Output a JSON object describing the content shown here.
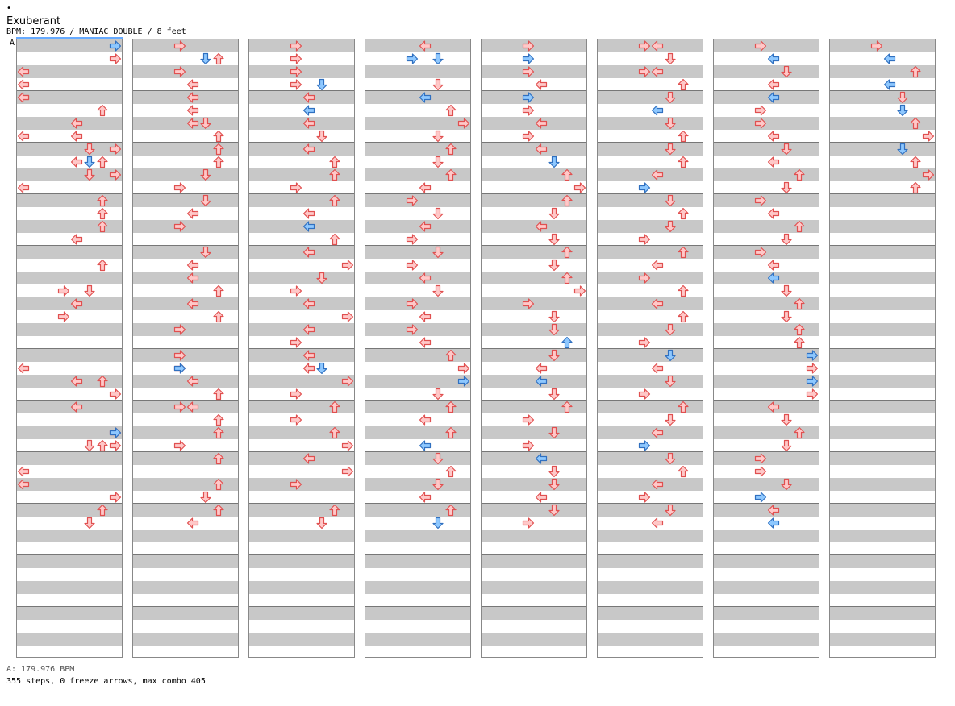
{
  "header": {
    "dot": "•",
    "title": "Exuberant",
    "meta": "BPM: 179.976 / MANIAC DOUBLE / 8 feet",
    "bpm_marker": "A"
  },
  "footer": {
    "bpm_line": "A: 179.976 BPM",
    "stats": "355 steps, 0 freeze arrows, max combo 405"
  },
  "colors": {
    "band": "#c8c8c8",
    "border": "#888888",
    "red_fill": "#ffc8c8",
    "red_stroke": "#e05050",
    "blue_fill": "#8ec8ff",
    "blue_stroke": "#3070c0",
    "bpm_marker": "#66aaff"
  },
  "notes": [
    [
      [
        0,
        7,
        1
      ],
      [
        0,
        9,
        2
      ],
      [
        0,
        12,
        3
      ],
      [
        0,
        9,
        4
      ],
      [
        0,
        8,
        4
      ],
      [
        0,
        6,
        5
      ],
      [
        0,
        4,
        6
      ],
      [
        1,
        7,
        0
      ],
      [
        0,
        4,
        7
      ],
      [
        0,
        9,
        7
      ],
      [
        0,
        5,
        8
      ],
      [
        0,
        7,
        8
      ],
      [
        0,
        4,
        9
      ],
      [
        0,
        6,
        9
      ],
      [
        1,
        5,
        9
      ],
      [
        0,
        7,
        10
      ],
      [
        0,
        5,
        10
      ],
      [
        0,
        9,
        11
      ],
      [
        0,
        6,
        12
      ],
      [
        0,
        6,
        13
      ],
      [
        0,
        6,
        14
      ],
      [
        0,
        4,
        15
      ],
      [
        0,
        6,
        17
      ],
      [
        0,
        5,
        19
      ],
      [
        0,
        3,
        19
      ],
      [
        0,
        4,
        20
      ],
      [
        0,
        3,
        21
      ],
      [
        0,
        8,
        25
      ],
      [
        0,
        6,
        26
      ],
      [
        0,
        4,
        26
      ],
      [
        0,
        7,
        27
      ],
      [
        0,
        4,
        28
      ],
      [
        0,
        7,
        30
      ],
      [
        1,
        7,
        30
      ],
      [
        0,
        7,
        31
      ],
      [
        0,
        5,
        31
      ],
      [
        0,
        6,
        31
      ],
      [
        0,
        8,
        33
      ],
      [
        0,
        9,
        34
      ],
      [
        0,
        7,
        35
      ],
      [
        0,
        6,
        36
      ],
      [
        0,
        5,
        37
      ]
    ],
    [
      [
        0,
        3,
        0
      ],
      [
        0,
        6,
        1
      ],
      [
        1,
        5,
        1
      ],
      [
        0,
        3,
        2
      ],
      [
        0,
        4,
        3
      ],
      [
        0,
        4,
        4
      ],
      [
        0,
        4,
        5
      ],
      [
        0,
        5,
        6
      ],
      [
        0,
        4,
        6
      ],
      [
        0,
        6,
        7
      ],
      [
        0,
        6,
        8
      ],
      [
        0,
        6,
        9
      ],
      [
        0,
        5,
        10
      ],
      [
        0,
        3,
        11
      ],
      [
        0,
        5,
        12
      ],
      [
        0,
        4,
        13
      ],
      [
        0,
        3,
        14
      ],
      [
        0,
        5,
        16
      ],
      [
        0,
        4,
        17
      ],
      [
        0,
        4,
        18
      ],
      [
        0,
        6,
        19
      ],
      [
        0,
        4,
        20
      ],
      [
        0,
        6,
        21
      ],
      [
        0,
        3,
        22
      ],
      [
        0,
        3,
        24
      ],
      [
        0,
        3,
        25
      ],
      [
        1,
        3,
        25
      ],
      [
        0,
        4,
        26
      ],
      [
        0,
        6,
        27
      ],
      [
        0,
        3,
        28
      ],
      [
        0,
        4,
        28
      ],
      [
        0,
        6,
        29
      ],
      [
        0,
        6,
        30
      ],
      [
        0,
        3,
        31
      ],
      [
        0,
        6,
        32
      ],
      [
        0,
        6,
        34
      ],
      [
        0,
        5,
        35
      ],
      [
        0,
        6,
        36
      ],
      [
        0,
        4,
        37
      ]
    ],
    [
      [
        0,
        3,
        0
      ],
      [
        0,
        3,
        1
      ],
      [
        0,
        3,
        2
      ],
      [
        0,
        3,
        3
      ],
      [
        1,
        5,
        3
      ],
      [
        0,
        4,
        4
      ],
      [
        1,
        4,
        5
      ],
      [
        0,
        4,
        6
      ],
      [
        0,
        5,
        7
      ],
      [
        0,
        4,
        8
      ],
      [
        0,
        6,
        9
      ],
      [
        0,
        6,
        10
      ],
      [
        0,
        3,
        11
      ],
      [
        0,
        6,
        12
      ],
      [
        0,
        4,
        13
      ],
      [
        1,
        4,
        14
      ],
      [
        0,
        6,
        15
      ],
      [
        0,
        4,
        16
      ],
      [
        0,
        7,
        17
      ],
      [
        0,
        5,
        18
      ],
      [
        0,
        3,
        19
      ],
      [
        0,
        4,
        20
      ],
      [
        0,
        7,
        21
      ],
      [
        0,
        4,
        22
      ],
      [
        0,
        3,
        23
      ],
      [
        0,
        4,
        24
      ],
      [
        0,
        4,
        25
      ],
      [
        1,
        5,
        25
      ],
      [
        0,
        7,
        26
      ],
      [
        0,
        3,
        27
      ],
      [
        0,
        6,
        28
      ],
      [
        0,
        3,
        29
      ],
      [
        0,
        6,
        30
      ],
      [
        0,
        7,
        31
      ],
      [
        0,
        4,
        32
      ],
      [
        0,
        7,
        33
      ],
      [
        0,
        3,
        34
      ],
      [
        0,
        6,
        36
      ],
      [
        0,
        5,
        37
      ]
    ],
    [
      [
        0,
        4,
        0
      ],
      [
        1,
        3,
        1
      ],
      [
        1,
        5,
        1
      ],
      [
        0,
        5,
        3
      ],
      [
        1,
        4,
        4
      ],
      [
        0,
        6,
        5
      ],
      [
        0,
        7,
        6
      ],
      [
        0,
        5,
        7
      ],
      [
        0,
        6,
        8
      ],
      [
        0,
        5,
        9
      ],
      [
        0,
        6,
        10
      ],
      [
        0,
        4,
        11
      ],
      [
        0,
        3,
        12
      ],
      [
        0,
        5,
        13
      ],
      [
        0,
        4,
        14
      ],
      [
        0,
        3,
        15
      ],
      [
        0,
        5,
        16
      ],
      [
        0,
        3,
        17
      ],
      [
        0,
        4,
        18
      ],
      [
        0,
        5,
        19
      ],
      [
        0,
        3,
        20
      ],
      [
        0,
        4,
        21
      ],
      [
        0,
        3,
        22
      ],
      [
        0,
        4,
        23
      ],
      [
        0,
        6,
        24
      ],
      [
        0,
        7,
        25
      ],
      [
        1,
        7,
        26
      ],
      [
        0,
        5,
        27
      ],
      [
        0,
        6,
        28
      ],
      [
        0,
        4,
        29
      ],
      [
        0,
        6,
        30
      ],
      [
        1,
        4,
        31
      ],
      [
        0,
        5,
        32
      ],
      [
        0,
        6,
        33
      ],
      [
        0,
        5,
        34
      ],
      [
        0,
        4,
        35
      ],
      [
        0,
        6,
        36
      ],
      [
        1,
        5,
        37
      ]
    ],
    [
      [
        0,
        3,
        0
      ],
      [
        1,
        3,
        1
      ],
      [
        0,
        3,
        2
      ],
      [
        0,
        4,
        3
      ],
      [
        1,
        3,
        4
      ],
      [
        0,
        3,
        5
      ],
      [
        0,
        4,
        6
      ],
      [
        0,
        3,
        7
      ],
      [
        0,
        4,
        8
      ],
      [
        1,
        5,
        9
      ],
      [
        0,
        6,
        10
      ],
      [
        0,
        7,
        11
      ],
      [
        0,
        6,
        12
      ],
      [
        0,
        5,
        13
      ],
      [
        0,
        4,
        14
      ],
      [
        0,
        5,
        15
      ],
      [
        0,
        6,
        16
      ],
      [
        0,
        5,
        17
      ],
      [
        0,
        6,
        18
      ],
      [
        0,
        7,
        19
      ],
      [
        0,
        3,
        20
      ],
      [
        0,
        5,
        21
      ],
      [
        0,
        5,
        22
      ],
      [
        1,
        6,
        23
      ],
      [
        0,
        5,
        24
      ],
      [
        0,
        4,
        25
      ],
      [
        1,
        4,
        26
      ],
      [
        0,
        5,
        27
      ],
      [
        0,
        6,
        28
      ],
      [
        0,
        3,
        29
      ],
      [
        0,
        5,
        30
      ],
      [
        0,
        3,
        31
      ],
      [
        1,
        4,
        32
      ],
      [
        0,
        5,
        33
      ],
      [
        0,
        5,
        34
      ],
      [
        0,
        4,
        35
      ],
      [
        0,
        5,
        36
      ],
      [
        0,
        3,
        37
      ]
    ],
    [
      [
        0,
        3,
        0
      ],
      [
        0,
        4,
        0
      ],
      [
        0,
        5,
        1
      ],
      [
        0,
        3,
        2
      ],
      [
        0,
        4,
        2
      ],
      [
        0,
        6,
        3
      ],
      [
        0,
        5,
        4
      ],
      [
        1,
        4,
        5
      ],
      [
        0,
        5,
        6
      ],
      [
        0,
        6,
        7
      ],
      [
        0,
        5,
        8
      ],
      [
        0,
        6,
        9
      ],
      [
        0,
        4,
        10
      ],
      [
        1,
        3,
        11
      ],
      [
        0,
        5,
        12
      ],
      [
        0,
        6,
        13
      ],
      [
        0,
        5,
        14
      ],
      [
        0,
        3,
        15
      ],
      [
        0,
        6,
        16
      ],
      [
        0,
        4,
        17
      ],
      [
        0,
        3,
        18
      ],
      [
        0,
        6,
        19
      ],
      [
        0,
        4,
        20
      ],
      [
        0,
        6,
        21
      ],
      [
        0,
        5,
        22
      ],
      [
        0,
        3,
        23
      ],
      [
        1,
        5,
        24
      ],
      [
        0,
        4,
        25
      ],
      [
        0,
        5,
        26
      ],
      [
        0,
        3,
        27
      ],
      [
        0,
        6,
        28
      ],
      [
        0,
        5,
        29
      ],
      [
        0,
        4,
        30
      ],
      [
        1,
        3,
        31
      ],
      [
        0,
        5,
        32
      ],
      [
        0,
        6,
        33
      ],
      [
        0,
        4,
        34
      ],
      [
        0,
        3,
        35
      ],
      [
        0,
        5,
        36
      ],
      [
        0,
        4,
        37
      ]
    ],
    [
      [
        0,
        3,
        0
      ],
      [
        1,
        4,
        1
      ],
      [
        0,
        5,
        2
      ],
      [
        0,
        4,
        3
      ],
      [
        1,
        4,
        4
      ],
      [
        0,
        3,
        5
      ],
      [
        0,
        3,
        6
      ],
      [
        0,
        4,
        7
      ],
      [
        0,
        5,
        8
      ],
      [
        0,
        4,
        9
      ],
      [
        0,
        6,
        10
      ],
      [
        0,
        5,
        11
      ],
      [
        0,
        3,
        12
      ],
      [
        0,
        4,
        13
      ],
      [
        0,
        6,
        14
      ],
      [
        0,
        5,
        15
      ],
      [
        0,
        3,
        16
      ],
      [
        0,
        4,
        17
      ],
      [
        1,
        4,
        18
      ],
      [
        0,
        5,
        19
      ],
      [
        0,
        6,
        20
      ],
      [
        0,
        5,
        21
      ],
      [
        0,
        6,
        22
      ],
      [
        0,
        6,
        23
      ],
      [
        1,
        7,
        24
      ],
      [
        0,
        7,
        25
      ],
      [
        1,
        7,
        26
      ],
      [
        0,
        7,
        27
      ],
      [
        0,
        4,
        28
      ],
      [
        0,
        5,
        29
      ],
      [
        0,
        6,
        30
      ],
      [
        0,
        5,
        31
      ],
      [
        0,
        3,
        32
      ],
      [
        0,
        3,
        33
      ],
      [
        0,
        5,
        34
      ],
      [
        1,
        3,
        35
      ],
      [
        0,
        4,
        36
      ],
      [
        1,
        4,
        37
      ]
    ],
    [
      [
        0,
        3,
        0
      ],
      [
        1,
        4,
        1
      ],
      [
        0,
        6,
        2
      ],
      [
        1,
        4,
        3
      ],
      [
        0,
        5,
        4
      ],
      [
        1,
        5,
        5
      ],
      [
        0,
        6,
        6
      ],
      [
        0,
        7,
        7
      ],
      [
        1,
        5,
        8
      ],
      [
        0,
        6,
        9
      ],
      [
        0,
        7,
        10
      ],
      [
        0,
        6,
        11
      ]
    ]
  ]
}
